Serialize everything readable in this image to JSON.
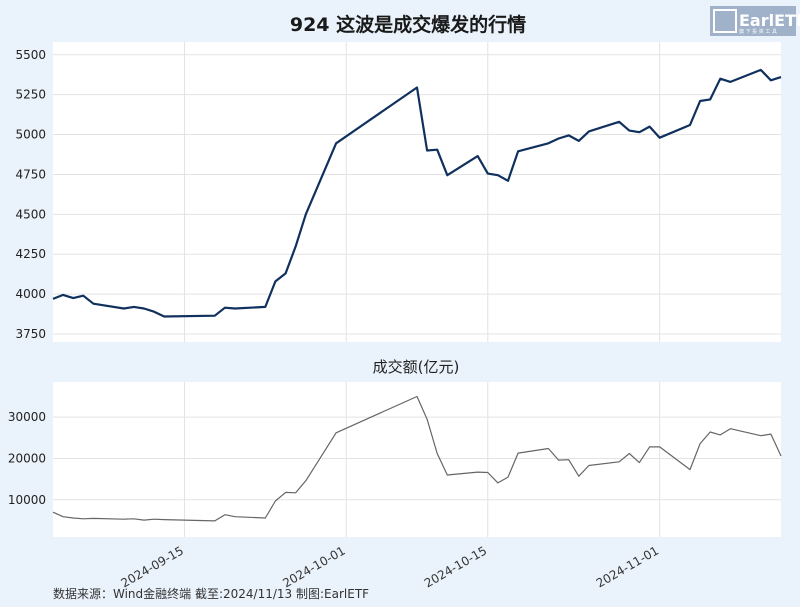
{
  "title": "924 这波是成交爆发的行情",
  "footer": "数据来源：Wind金融终端 截至:2024/11/13 制图:EarlETF",
  "logo": {
    "text": "EarlETF",
    "sub": "旗 下 投 资 工 具"
  },
  "colors": {
    "background": "#eaf2fb",
    "plot_background": "#ffffff",
    "price_line": "#10305e",
    "volume_line": "#666666",
    "grid": "#e3e3e3",
    "logo_bg": "#9fb2c9"
  },
  "chart_data": [
    {
      "type": "line",
      "title": "924 这波是成交爆发的行情",
      "ylim": [
        3700,
        5580
      ],
      "yticks": [
        3750,
        4000,
        4250,
        4500,
        4750,
        5000,
        5250,
        5500
      ],
      "grid": true,
      "x": [
        "2024-09-02",
        "2024-09-03",
        "2024-09-04",
        "2024-09-05",
        "2024-09-06",
        "2024-09-09",
        "2024-09-10",
        "2024-09-11",
        "2024-09-12",
        "2024-09-13",
        "2024-09-18",
        "2024-09-19",
        "2024-09-20",
        "2024-09-23",
        "2024-09-24",
        "2024-09-25",
        "2024-09-26",
        "2024-09-27",
        "2024-09-30",
        "2024-10-08",
        "2024-10-09",
        "2024-10-10",
        "2024-10-11",
        "2024-10-14",
        "2024-10-15",
        "2024-10-16",
        "2024-10-17",
        "2024-10-18",
        "2024-10-21",
        "2024-10-22",
        "2024-10-23",
        "2024-10-24",
        "2024-10-25",
        "2024-10-28",
        "2024-10-29",
        "2024-10-30",
        "2024-10-31",
        "2024-11-01",
        "2024-11-04",
        "2024-11-05",
        "2024-11-06",
        "2024-11-07",
        "2024-11-08",
        "2024-11-11",
        "2024-11-12",
        "2024-11-13"
      ],
      "series": [
        {
          "values": [
            3970,
            3995,
            3975,
            3990,
            3940,
            3910,
            3920,
            3910,
            3890,
            3860,
            3865,
            3915,
            3910,
            3920,
            4080,
            4130,
            4300,
            4500,
            4945,
            5295,
            4900,
            4905,
            4745,
            4865,
            4755,
            4745,
            4710,
            4895,
            4945,
            4975,
            4995,
            4960,
            5020,
            5080,
            5025,
            5015,
            5050,
            4980,
            5060,
            5210,
            5220,
            5350,
            5330,
            5405,
            5340,
            5360
          ]
        }
      ]
    },
    {
      "type": "line",
      "title": "成交额(亿元)",
      "ylim": [
        1000,
        38500
      ],
      "yticks": [
        10000,
        20000,
        30000
      ],
      "grid": true,
      "x": [
        "2024-09-02",
        "2024-09-03",
        "2024-09-04",
        "2024-09-05",
        "2024-09-06",
        "2024-09-09",
        "2024-09-10",
        "2024-09-11",
        "2024-09-12",
        "2024-09-13",
        "2024-09-18",
        "2024-09-19",
        "2024-09-20",
        "2024-09-23",
        "2024-09-24",
        "2024-09-25",
        "2024-09-26",
        "2024-09-27",
        "2024-09-30",
        "2024-10-08",
        "2024-10-09",
        "2024-10-10",
        "2024-10-11",
        "2024-10-14",
        "2024-10-15",
        "2024-10-16",
        "2024-10-17",
        "2024-10-18",
        "2024-10-21",
        "2024-10-22",
        "2024-10-23",
        "2024-10-24",
        "2024-10-25",
        "2024-10-28",
        "2024-10-29",
        "2024-10-30",
        "2024-10-31",
        "2024-11-01",
        "2024-11-04",
        "2024-11-05",
        "2024-11-06",
        "2024-11-07",
        "2024-11-08",
        "2024-11-11",
        "2024-11-12",
        "2024-11-13"
      ],
      "series": [
        {
          "values": [
            7000,
            5900,
            5600,
            5400,
            5500,
            5300,
            5400,
            5100,
            5300,
            5200,
            4900,
            6400,
            5900,
            5600,
            9700,
            11800,
            11700,
            14600,
            26200,
            35000,
            29500,
            21200,
            16000,
            16700,
            16600,
            14100,
            15500,
            21300,
            22400,
            19600,
            19700,
            15700,
            18300,
            19200,
            21200,
            19000,
            22800,
            22800,
            17300,
            23600,
            26400,
            25700,
            27200,
            25500,
            25900,
            20600
          ]
        }
      ],
      "xticks": [
        "2024-09-15",
        "2024-10-01",
        "2024-10-15",
        "2024-11-01"
      ]
    }
  ]
}
